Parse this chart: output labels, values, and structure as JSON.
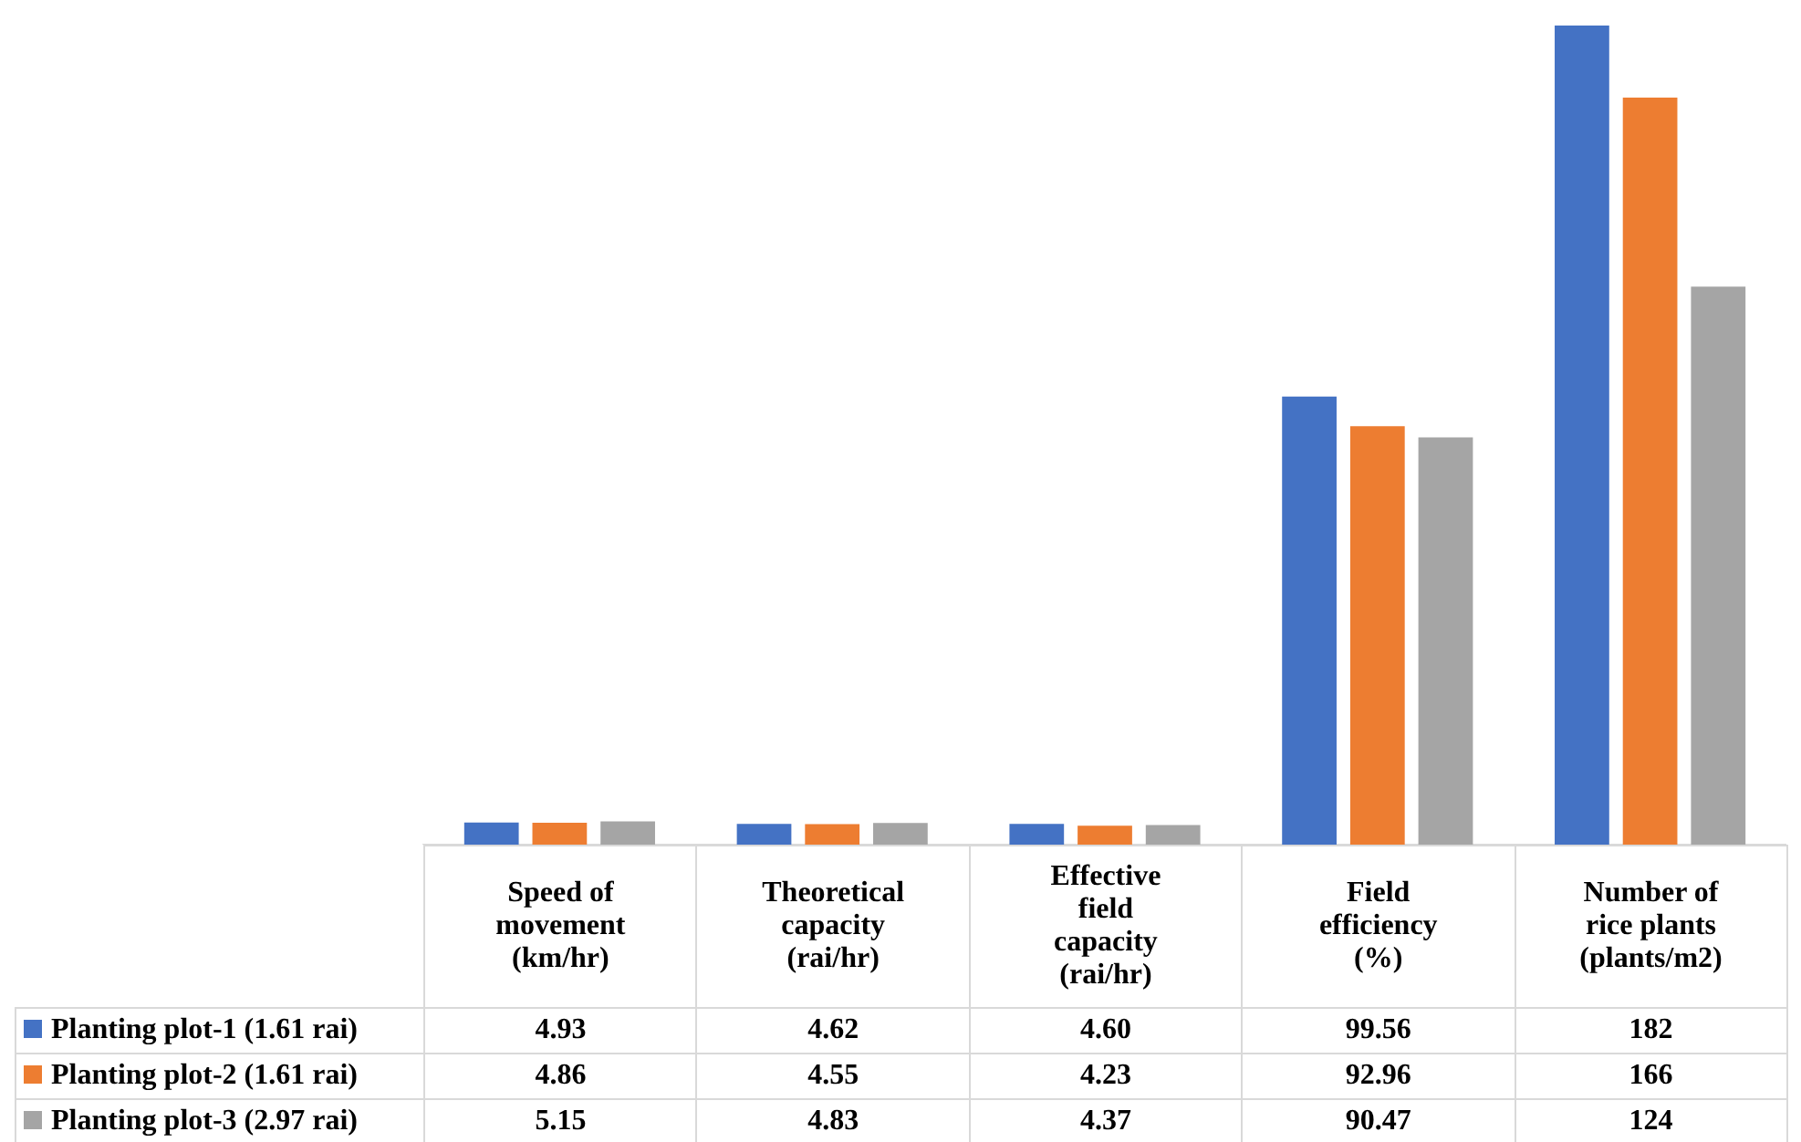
{
  "chart_data": {
    "type": "bar",
    "categories": [
      "Speed of movement (km/hr)",
      "Theoretical capacity (rai/hr)",
      "Effective field capacity (rai/hr)",
      "Field efficiency (%)",
      "Number of rice plants (plants/m2)"
    ],
    "series": [
      {
        "name": "Planting plot-1 (1.61 rai)",
        "color": "#4472c4",
        "values": [
          4.93,
          4.62,
          4.6,
          99.56,
          182
        ],
        "value_labels": [
          "4.93",
          "4.62",
          "4.60",
          "99.56",
          "182"
        ]
      },
      {
        "name": "Planting plot-2 (1.61 rai)",
        "color": "#ed7d31",
        "values": [
          4.86,
          4.55,
          4.23,
          92.96,
          166
        ],
        "value_labels": [
          "4.86",
          "4.55",
          "4.23",
          "92.96",
          "166"
        ]
      },
      {
        "name": "Planting plot-3 (2.97 rai)",
        "color": "#a5a5a5",
        "values": [
          5.15,
          4.83,
          4.37,
          90.47,
          124
        ],
        "value_labels": [
          "5.15",
          "4.83",
          "4.37",
          "90.47",
          "124"
        ]
      }
    ],
    "legend": "bottom left",
    "grid": false
  }
}
